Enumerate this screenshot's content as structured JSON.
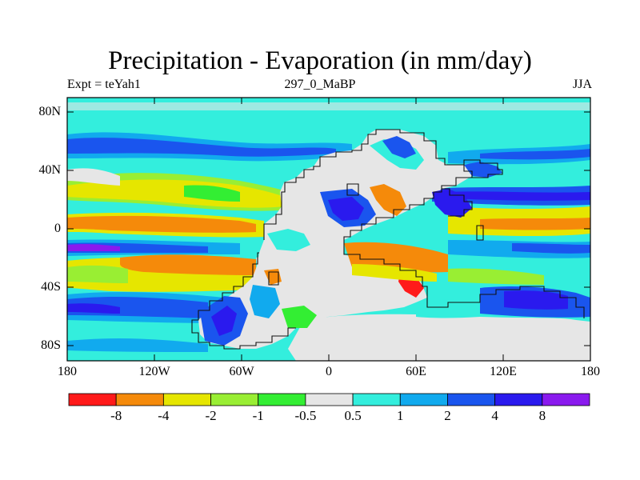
{
  "title": "Precipitation - Evaporation (in mm/day)",
  "subtitle_left": "Expt = teYah1",
  "subtitle_center": "297_0_MaBP",
  "subtitle_right": "JJA",
  "lat_labels": [
    "80N",
    "40N",
    "0",
    "40S",
    "80S"
  ],
  "lon_labels": [
    "180",
    "120W",
    "60W",
    "0",
    "60E",
    "120E",
    "180"
  ],
  "colorbar": {
    "colors": [
      "#ff1a1a",
      "#f58a0a",
      "#e6e600",
      "#99ee33",
      "#33ee33",
      "#e6e6e6",
      "#33eedd",
      "#11aaee",
      "#1a55ee",
      "#2a1aee",
      "#8a1aee"
    ],
    "labels": [
      "-8",
      "-4",
      "-2",
      "-1",
      "-0.5",
      "0.5",
      "1",
      "2",
      "4",
      "8"
    ]
  },
  "colors": {
    "cyan": "#33eedd",
    "skyblue": "#11aaee",
    "blue": "#1a55ee",
    "darkblue": "#2a1aee",
    "purple": "#8a1aee",
    "gray": "#e6e6e6",
    "green": "#33ee33",
    "lightgreen": "#99ee33",
    "yellow": "#e6e600",
    "orange": "#f58a0a",
    "red": "#ff1a1a"
  }
}
